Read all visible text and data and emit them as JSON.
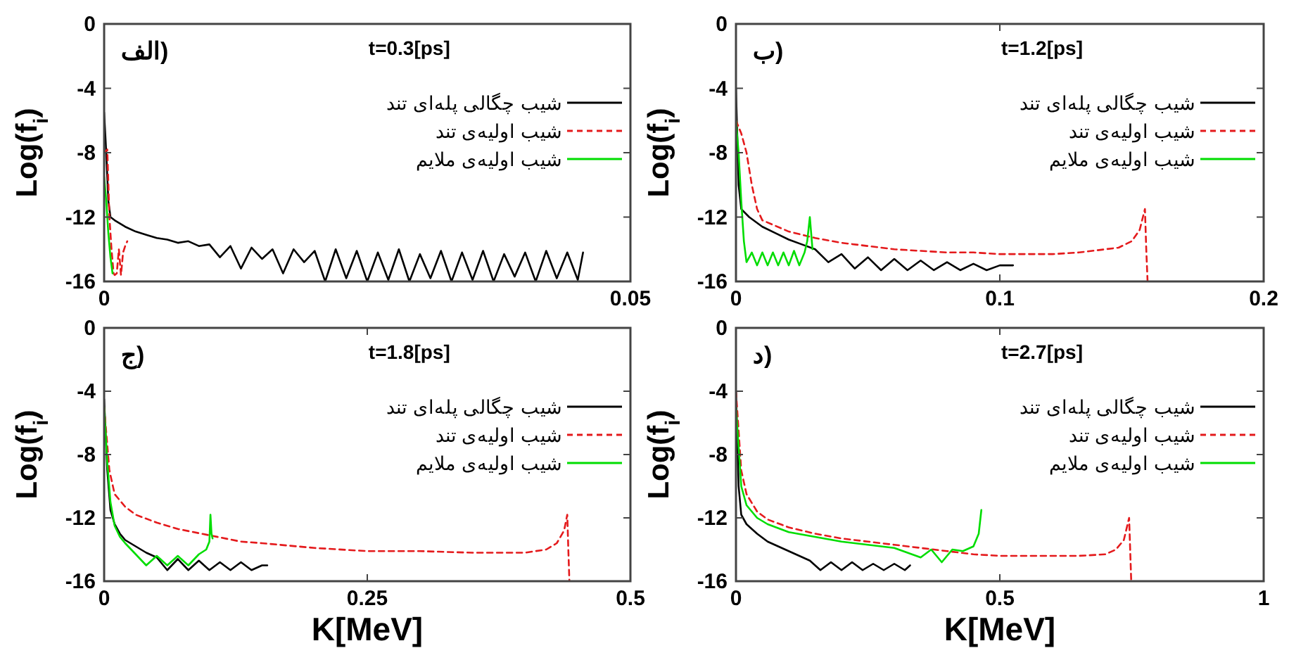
{
  "chart_data": [
    {
      "type": "line",
      "title": "t=0.3[ps]",
      "annotations": [
        "الف)"
      ],
      "ylabel": "Log(f$_{i}$)",
      "xlim": [
        0,
        0.05
      ],
      "xticks": [
        0,
        0.05
      ],
      "ylim": [
        -16,
        0
      ],
      "yticks": [
        0,
        -4,
        -8,
        -12,
        -16
      ],
      "legend": "top right",
      "series": [
        {
          "name": "شیب چگالی پله‌ای تند",
          "color": "#000000",
          "line_style": "solid",
          "x": [
            0,
            0.0002,
            0.0004,
            0.0006,
            0.001,
            0.002,
            0.003,
            0.004,
            0.005,
            0.006,
            0.007,
            0.008,
            0.009,
            0.01,
            0.011,
            0.012,
            0.013,
            0.014,
            0.015,
            0.016,
            0.017,
            0.018,
            0.019,
            0.02,
            0.021,
            0.022,
            0.023,
            0.024,
            0.025,
            0.026,
            0.027,
            0.028,
            0.029,
            0.03,
            0.031,
            0.032,
            0.033,
            0.034,
            0.035,
            0.036,
            0.037,
            0.038,
            0.039,
            0.04,
            0.041,
            0.042,
            0.043,
            0.044,
            0.045,
            0.0455
          ],
          "values": [
            -5.5,
            -8,
            -11,
            -12,
            -12.2,
            -12.6,
            -12.9,
            -13.1,
            -13.3,
            -13.4,
            -13.6,
            -13.5,
            -13.8,
            -13.7,
            -14.5,
            -13.8,
            -15.2,
            -13.9,
            -14.6,
            -14,
            -15.5,
            -14,
            -14.8,
            -14.1,
            -16,
            -14,
            -15.8,
            -14.1,
            -16,
            -14.2,
            -15.9,
            -14,
            -16,
            -14.3,
            -15.8,
            -14.1,
            -16,
            -14.2,
            -15.9,
            -14.1,
            -16,
            -14.3,
            -15.7,
            -14.2,
            -16,
            -14.1,
            -15.8,
            -14.2,
            -15.9,
            -14.2
          ]
        },
        {
          "name": "شیب اولیه‌ی تند",
          "color": "#e41a1c",
          "line_style": "dashed",
          "x": [
            0,
            0.0003,
            0.0005,
            0.0007,
            0.0009,
            0.001,
            0.0012,
            0.0014,
            0.0016,
            0.0018,
            0.002,
            0.0022
          ],
          "values": [
            -8,
            -7.8,
            -12,
            -14,
            -15.5,
            -15.6,
            -15.5,
            -14,
            -15.6,
            -14.2,
            -13.8,
            -13.5
          ]
        },
        {
          "name": "شیب اولیه‌ی ملایم",
          "color": "#00dd00",
          "line_style": "solid",
          "x": [
            0,
            0.0002,
            0.0004,
            0.0006,
            0.0008
          ],
          "values": [
            -9.5,
            -11,
            -13,
            -14.5,
            -15.5
          ]
        }
      ]
    },
    {
      "type": "line",
      "title": "t=1.2[ps]",
      "annotations": [
        "ب)"
      ],
      "ylabel": "Log(f$_{i}$)",
      "xlim": [
        0,
        0.2
      ],
      "xticks": [
        0,
        0.1,
        0.2
      ],
      "ylim": [
        -16,
        0
      ],
      "yticks": [
        0,
        -4,
        -8,
        -12,
        -16
      ],
      "legend": "top right",
      "series": [
        {
          "name": "شیب چگالی پله‌ای تند",
          "color": "#000000",
          "line_style": "solid",
          "x": [
            0,
            0.001,
            0.002,
            0.005,
            0.01,
            0.015,
            0.02,
            0.025,
            0.03,
            0.035,
            0.04,
            0.045,
            0.05,
            0.055,
            0.06,
            0.065,
            0.07,
            0.075,
            0.08,
            0.085,
            0.09,
            0.095,
            0.1,
            0.105
          ],
          "values": [
            -4,
            -10,
            -11.5,
            -12,
            -12.6,
            -13,
            -13.4,
            -13.7,
            -14,
            -14.8,
            -14.3,
            -15.2,
            -14.5,
            -15.3,
            -14.6,
            -15.3,
            -14.7,
            -15.3,
            -14.8,
            -15.3,
            -14.9,
            -15.3,
            -15,
            -15
          ]
        },
        {
          "name": "شیب اولیه‌ی تند",
          "color": "#e41a1c",
          "line_style": "dashed",
          "x": [
            0,
            0.002,
            0.004,
            0.006,
            0.008,
            0.01,
            0.02,
            0.03,
            0.04,
            0.05,
            0.06,
            0.07,
            0.08,
            0.09,
            0.1,
            0.11,
            0.12,
            0.13,
            0.14,
            0.145,
            0.15,
            0.153,
            0.155,
            0.1555,
            0.156
          ],
          "values": [
            -6,
            -6.8,
            -8,
            -10,
            -11.5,
            -12.2,
            -12.9,
            -13.3,
            -13.6,
            -13.8,
            -14,
            -14.1,
            -14.2,
            -14.2,
            -14.3,
            -14.3,
            -14.3,
            -14.2,
            -14,
            -13.9,
            -13.5,
            -12.8,
            -11.5,
            -14,
            -16
          ]
        },
        {
          "name": "شیب اولیه‌ی ملایم",
          "color": "#00dd00",
          "line_style": "solid",
          "x": [
            0,
            0.001,
            0.002,
            0.003,
            0.004,
            0.006,
            0.008,
            0.01,
            0.012,
            0.014,
            0.016,
            0.018,
            0.02,
            0.022,
            0.024,
            0.026,
            0.027,
            0.028,
            0.029
          ],
          "values": [
            -6,
            -8,
            -11,
            -13.5,
            -14.8,
            -14.2,
            -15,
            -14.2,
            -15,
            -14.2,
            -15,
            -14.2,
            -15,
            -14.1,
            -15,
            -14.2,
            -13.5,
            -12,
            -14
          ]
        }
      ]
    },
    {
      "type": "line",
      "title": "t=1.8[ps]",
      "annotations": [
        "ج)"
      ],
      "ylabel": "Log(f$_{i}$)",
      "xlabel": "K[MeV]",
      "xlim": [
        0,
        0.5
      ],
      "xticks": [
        0,
        0.25,
        0.5
      ],
      "ylim": [
        -16,
        0
      ],
      "yticks": [
        0,
        -4,
        -8,
        -12,
        -16
      ],
      "legend": "top right",
      "series": [
        {
          "name": "شیب چگالی پله‌ای تند",
          "color": "#000000",
          "line_style": "solid",
          "x": [
            0,
            0.003,
            0.006,
            0.01,
            0.015,
            0.02,
            0.03,
            0.04,
            0.05,
            0.06,
            0.07,
            0.08,
            0.09,
            0.1,
            0.11,
            0.12,
            0.13,
            0.14,
            0.15,
            0.155
          ],
          "values": [
            -4.5,
            -9,
            -11.5,
            -12.4,
            -13,
            -13.4,
            -13.8,
            -14.2,
            -14.5,
            -15.3,
            -14.6,
            -15.3,
            -14.7,
            -15.3,
            -14.8,
            -15.3,
            -14.8,
            -15.3,
            -15,
            -15
          ]
        },
        {
          "name": "شیب اولیه‌ی تند",
          "color": "#e41a1c",
          "line_style": "dashed",
          "x": [
            0,
            0.005,
            0.01,
            0.02,
            0.03,
            0.05,
            0.07,
            0.1,
            0.13,
            0.15,
            0.2,
            0.25,
            0.3,
            0.35,
            0.4,
            0.42,
            0.43,
            0.437,
            0.44,
            0.441,
            0.442
          ],
          "values": [
            -5,
            -9,
            -10.5,
            -11.3,
            -11.8,
            -12.3,
            -12.7,
            -13.1,
            -13.5,
            -13.6,
            -13.9,
            -14.1,
            -14.1,
            -14.2,
            -14.2,
            -14,
            -13.6,
            -12.8,
            -11.8,
            -14,
            -16
          ]
        },
        {
          "name": "شیب اولیه‌ی ملایم",
          "color": "#00dd00",
          "line_style": "solid",
          "x": [
            0,
            0.003,
            0.006,
            0.01,
            0.015,
            0.02,
            0.03,
            0.04,
            0.05,
            0.06,
            0.07,
            0.08,
            0.09,
            0.097,
            0.1,
            0.101,
            0.102,
            0.103
          ],
          "values": [
            -5,
            -8.5,
            -11,
            -12.5,
            -13.2,
            -13.6,
            -14.3,
            -15,
            -14.4,
            -15,
            -14.4,
            -15,
            -14.3,
            -14,
            -13.5,
            -11.8,
            -13,
            -13.3
          ]
        }
      ]
    },
    {
      "type": "line",
      "title": "t=2.7[ps]",
      "annotations": [
        "د)"
      ],
      "ylabel": "Log(f$_{i}$)",
      "xlabel": "K[MeV]",
      "xlim": [
        0,
        1
      ],
      "xticks": [
        0,
        0.5,
        1
      ],
      "ylim": [
        -16,
        0
      ],
      "yticks": [
        0,
        -4,
        -8,
        -12,
        -16
      ],
      "legend": "top right",
      "series": [
        {
          "name": "شیب چگالی پله‌ای تند",
          "color": "#000000",
          "line_style": "solid",
          "x": [
            0,
            0.005,
            0.01,
            0.02,
            0.04,
            0.06,
            0.08,
            0.1,
            0.12,
            0.14,
            0.16,
            0.18,
            0.2,
            0.22,
            0.24,
            0.26,
            0.28,
            0.3,
            0.32,
            0.33
          ],
          "values": [
            -4,
            -10,
            -11.8,
            -12.4,
            -13,
            -13.5,
            -13.8,
            -14.1,
            -14.4,
            -14.7,
            -15.3,
            -14.8,
            -15.3,
            -14.8,
            -15.3,
            -14.9,
            -15.3,
            -14.9,
            -15.3,
            -15
          ]
        },
        {
          "name": "شیب اولیه‌ی تند",
          "color": "#e41a1c",
          "line_style": "dashed",
          "x": [
            0,
            0.01,
            0.02,
            0.04,
            0.06,
            0.1,
            0.15,
            0.2,
            0.25,
            0.3,
            0.35,
            0.4,
            0.45,
            0.5,
            0.55,
            0.6,
            0.65,
            0.7,
            0.72,
            0.735,
            0.745,
            0.747,
            0.749
          ],
          "values": [
            -4,
            -9,
            -10.5,
            -11.6,
            -12.1,
            -12.6,
            -13,
            -13.3,
            -13.5,
            -13.7,
            -13.9,
            -14.1,
            -14.3,
            -14.4,
            -14.4,
            -14.4,
            -14.4,
            -14.3,
            -14,
            -13.4,
            -12,
            -14,
            -16
          ]
        },
        {
          "name": "شیب اولیه‌ی ملایم",
          "color": "#00dd00",
          "line_style": "solid",
          "x": [
            0,
            0.01,
            0.02,
            0.04,
            0.06,
            0.1,
            0.15,
            0.2,
            0.25,
            0.3,
            0.35,
            0.37,
            0.39,
            0.41,
            0.43,
            0.45,
            0.46,
            0.465
          ],
          "values": [
            -5,
            -10,
            -11.2,
            -12,
            -12.4,
            -12.9,
            -13.2,
            -13.5,
            -13.7,
            -13.9,
            -14.5,
            -14,
            -14.8,
            -14,
            -14.1,
            -13.8,
            -13,
            -11.5
          ]
        }
      ]
    }
  ]
}
